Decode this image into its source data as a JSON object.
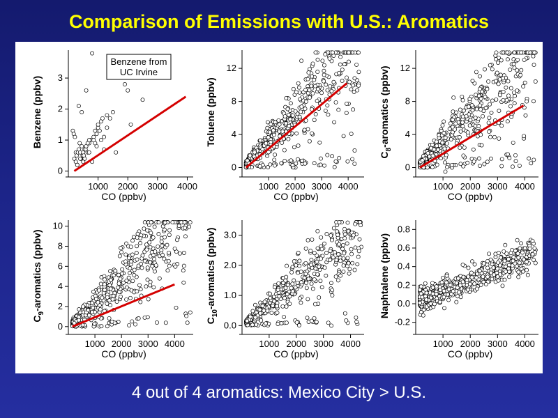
{
  "slide": {
    "title": "Comparison of Emissions with U.S.: Aromatics",
    "footer": "4 out of 4 aromatics: Mexico City > U.S."
  },
  "colors": {
    "background": "#1c2488",
    "title": "#ffff00",
    "footer": "#ffffff",
    "fit_line": "#d40000",
    "marker": "#000000"
  },
  "chart_data": [
    {
      "type": "scatter",
      "ylabel": "Benzene (ppbv)",
      "ylabel_sub": "",
      "ylabel_rest": "",
      "xlabel": "CO (ppbv)",
      "xlim": [
        0,
        4200
      ],
      "ylim": [
        -0.1,
        3.9
      ],
      "xticks": [
        1000,
        2000,
        3000,
        4000
      ],
      "xtick_labels": [
        "1000",
        "2000",
        "3000",
        "4000"
      ],
      "yticks": [
        0,
        1,
        2,
        3
      ],
      "ytick_labels": [
        "0",
        "1",
        "2",
        "3"
      ],
      "annotation": [
        "Benzene from",
        "UC Irvine"
      ],
      "fit_line": {
        "x": [
          200,
          3950
        ],
        "y": [
          0.0,
          2.4
        ]
      },
      "series": [
        {
          "values_from": "scatter",
          "x": [
            150,
            180,
            200,
            220,
            250,
            280,
            300,
            320,
            350,
            380,
            400,
            420,
            450,
            480,
            500,
            520,
            550,
            580,
            600,
            650,
            700,
            750,
            800,
            850,
            900,
            950,
            1000,
            1050,
            1100,
            1150,
            1200,
            1300,
            1400,
            1500,
            1600,
            2000,
            2100,
            2500,
            1900,
            1300,
            800,
            600,
            450,
            350,
            700,
            1000,
            1200,
            900,
            500,
            300,
            250,
            600,
            400,
            1100,
            700,
            550,
            650,
            850,
            950
          ],
          "y": [
            1.3,
            1.2,
            0.4,
            1.1,
            0.6,
            0.5,
            0.2,
            0.6,
            0.7,
            0.9,
            0.6,
            0.4,
            0.8,
            0.5,
            0.6,
            0.5,
            0.7,
            0.7,
            0.8,
            0.6,
            0.9,
            1.0,
            0.3,
            1.1,
            0.9,
            1.2,
            1.4,
            1.3,
            1.6,
            1.7,
            1.1,
            1.8,
            1.7,
            1.9,
            0.6,
            2.6,
            1.5,
            2.3,
            2.8,
            1.4,
            3.8,
            2.6,
            1.9,
            2.1,
            1.0,
            1.5,
            0.7,
            1.3,
            0.3,
            0.2,
            0.3,
            0.8,
            0.4,
            1.0,
            0.6,
            0.4,
            0.9,
            1.0,
            0.8
          ]
        }
      ]
    },
    {
      "type": "scatter",
      "ylabel": "Toluene (ppbv)",
      "ylabel_sub": "",
      "ylabel_rest": "",
      "xlabel": "CO (ppbv)",
      "xlim": [
        0,
        4600
      ],
      "ylim": [
        -0.8,
        14.2
      ],
      "xticks": [
        1000,
        2000,
        3000,
        4000
      ],
      "xtick_labels": [
        "1000",
        "2000",
        "3000",
        "4000"
      ],
      "yticks": [
        0,
        4,
        8,
        12
      ],
      "ytick_labels": [
        "0",
        "4",
        "8",
        "12"
      ],
      "annotation": [],
      "fit_line": {
        "x": [
          150,
          3950
        ],
        "y": [
          0.0,
          10.2
        ]
      },
      "generate": {
        "n": 520,
        "x_min": 150,
        "x_max": 4400,
        "slope": 0.0033,
        "noise": 0.55,
        "seed": 11
      },
      "series": []
    },
    {
      "type": "scatter",
      "ylabel": "C",
      "ylabel_sub": "8",
      "ylabel_rest": "-aromatics (ppbv)",
      "xlabel": "CO (ppbv)",
      "xlim": [
        0,
        4500
      ],
      "ylim": [
        -0.8,
        14.2
      ],
      "xticks": [
        1000,
        2000,
        3000,
        4000
      ],
      "xtick_labels": [
        "1000",
        "2000",
        "3000",
        "4000"
      ],
      "yticks": [
        0,
        4,
        8,
        12
      ],
      "ytick_labels": [
        "0",
        "4",
        "8",
        "12"
      ],
      "annotation": [],
      "fit_line": {
        "x": [
          150,
          3950
        ],
        "y": [
          0.0,
          7.5
        ]
      },
      "generate": {
        "n": 520,
        "x_min": 150,
        "x_max": 4400,
        "slope": 0.0032,
        "noise": 0.6,
        "seed": 23
      },
      "series": []
    },
    {
      "type": "scatter",
      "ylabel": "C",
      "ylabel_sub": "9",
      "ylabel_rest": "-aromatics (ppbv)",
      "xlabel": "CO (ppbv)",
      "xlim": [
        0,
        4700
      ],
      "ylim": [
        -0.5,
        10.6
      ],
      "xticks": [
        1000,
        2000,
        3000,
        4000
      ],
      "xtick_labels": [
        "1000",
        "2000",
        "3000",
        "4000"
      ],
      "yticks": [
        0,
        2,
        4,
        6,
        8,
        10
      ],
      "ytick_labels": [
        "0",
        "2",
        "4",
        "6",
        "8",
        "10"
      ],
      "annotation": [],
      "fit_line": {
        "x": [
          150,
          4000
        ],
        "y": [
          0.0,
          4.2
        ]
      },
      "generate": {
        "n": 520,
        "x_min": 150,
        "x_max": 4600,
        "slope": 0.0024,
        "noise": 0.55,
        "seed": 37
      },
      "series": []
    },
    {
      "type": "scatter",
      "ylabel": "C",
      "ylabel_sub": "10",
      "ylabel_rest": "-aromatics (ppbv)",
      "xlabel": "CO (ppbv)",
      "xlim": [
        0,
        4500
      ],
      "ylim": [
        -0.2,
        3.5
      ],
      "xticks": [
        1000,
        2000,
        3000,
        4000
      ],
      "xtick_labels": [
        "1000",
        "2000",
        "3000",
        "4000"
      ],
      "yticks": [
        0,
        1,
        2,
        3
      ],
      "ytick_labels": [
        "0.0",
        "1.0",
        "2.0",
        "3.0"
      ],
      "annotation": [],
      "generate": {
        "n": 520,
        "x_min": 150,
        "x_max": 4400,
        "slope": 0.00072,
        "noise": 0.5,
        "seed": 51
      },
      "series": []
    },
    {
      "type": "scatter",
      "ylabel": "Naphtalene (ppbv)",
      "ylabel_sub": "",
      "ylabel_rest": "",
      "xlabel": "CO (ppbv)",
      "xlim": [
        0,
        4500
      ],
      "ylim": [
        -0.3,
        0.9
      ],
      "xticks": [
        1000,
        2000,
        3000,
        4000
      ],
      "xtick_labels": [
        "1000",
        "2000",
        "3000",
        "4000"
      ],
      "yticks": [
        -0.2,
        0,
        0.2,
        0.4,
        0.6,
        0.8
      ],
      "ytick_labels": [
        "-0.2",
        "0.0",
        "0.2",
        "0.4",
        "0.6",
        "0.8"
      ],
      "annotation": [],
      "generate": {
        "n": 520,
        "x_min": 150,
        "x_max": 4400,
        "slope": 0.00012,
        "intercept": 0.02,
        "noise": 0.09,
        "additive": true,
        "seed": 67
      },
      "series": []
    }
  ]
}
